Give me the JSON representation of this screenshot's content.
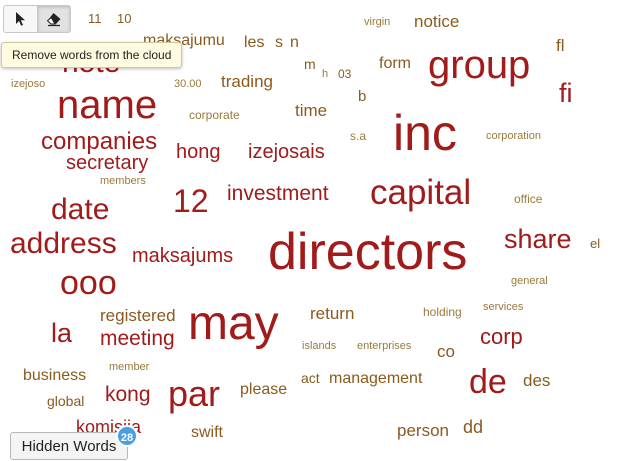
{
  "toolbar": {
    "select_tool_icon": "pointer-icon",
    "erase_tool_icon": "eraser-icon",
    "tooltip": "Remove words from the cloud"
  },
  "hidden_words": {
    "label": "Hidden Words",
    "count": "28"
  },
  "colors": {
    "red": "#a11b1b",
    "brown": "#8a5a1e",
    "olive": "#9a7a3c",
    "badge": "#4a9fe0"
  },
  "words": [
    {
      "text": "11",
      "tone": "brown"
    },
    {
      "text": "10",
      "tone": "brown"
    },
    {
      "text": "virgin",
      "tone": "olive"
    },
    {
      "text": "notice",
      "tone": "brown"
    },
    {
      "text": "maksajumu",
      "tone": "brown"
    },
    {
      "text": "les",
      "tone": "brown"
    },
    {
      "text": "s",
      "tone": "brown"
    },
    {
      "text": "n",
      "tone": "brown"
    },
    {
      "text": "fl",
      "tone": "brown"
    },
    {
      "text": "note",
      "tone": "red"
    },
    {
      "text": "group",
      "tone": "red"
    },
    {
      "text": "m",
      "tone": "brown"
    },
    {
      "text": "form",
      "tone": "brown"
    },
    {
      "text": "h",
      "tone": "olive"
    },
    {
      "text": "03",
      "tone": "brown"
    },
    {
      "text": "izejoso",
      "tone": "olive"
    },
    {
      "text": "30.00",
      "tone": "olive"
    },
    {
      "text": "trading",
      "tone": "brown"
    },
    {
      "text": "fi",
      "tone": "red"
    },
    {
      "text": "name",
      "tone": "red"
    },
    {
      "text": "b",
      "tone": "brown"
    },
    {
      "text": "time",
      "tone": "brown"
    },
    {
      "text": "corporate",
      "tone": "olive"
    },
    {
      "text": "inc",
      "tone": "red"
    },
    {
      "text": "companies",
      "tone": "red"
    },
    {
      "text": "s.a",
      "tone": "olive"
    },
    {
      "text": "corporation",
      "tone": "olive"
    },
    {
      "text": "hong",
      "tone": "red"
    },
    {
      "text": "izejosais",
      "tone": "red"
    },
    {
      "text": "secretary",
      "tone": "red"
    },
    {
      "text": "members",
      "tone": "olive"
    },
    {
      "text": "12",
      "tone": "red"
    },
    {
      "text": "investment",
      "tone": "red"
    },
    {
      "text": "capital",
      "tone": "red"
    },
    {
      "text": "office",
      "tone": "olive"
    },
    {
      "text": "date",
      "tone": "red"
    },
    {
      "text": "share",
      "tone": "red"
    },
    {
      "text": "address",
      "tone": "red"
    },
    {
      "text": "directors",
      "tone": "red"
    },
    {
      "text": "el",
      "tone": "brown"
    },
    {
      "text": "maksajums",
      "tone": "red"
    },
    {
      "text": "ooo",
      "tone": "red"
    },
    {
      "text": "general",
      "tone": "olive"
    },
    {
      "text": "services",
      "tone": "olive"
    },
    {
      "text": "registered",
      "tone": "brown"
    },
    {
      "text": "return",
      "tone": "brown"
    },
    {
      "text": "holding",
      "tone": "olive"
    },
    {
      "text": "may",
      "tone": "red"
    },
    {
      "text": "la",
      "tone": "red"
    },
    {
      "text": "meeting",
      "tone": "red"
    },
    {
      "text": "corp",
      "tone": "red"
    },
    {
      "text": "islands",
      "tone": "olive"
    },
    {
      "text": "enterprises",
      "tone": "olive"
    },
    {
      "text": "co",
      "tone": "brown"
    },
    {
      "text": "member",
      "tone": "olive"
    },
    {
      "text": "business",
      "tone": "brown"
    },
    {
      "text": "act",
      "tone": "brown"
    },
    {
      "text": "management",
      "tone": "brown"
    },
    {
      "text": "de",
      "tone": "red"
    },
    {
      "text": "des",
      "tone": "brown"
    },
    {
      "text": "kong",
      "tone": "red"
    },
    {
      "text": "par",
      "tone": "red"
    },
    {
      "text": "please",
      "tone": "brown"
    },
    {
      "text": "global",
      "tone": "brown"
    },
    {
      "text": "komisija",
      "tone": "red"
    },
    {
      "text": "swift",
      "tone": "brown"
    },
    {
      "text": "person",
      "tone": "brown"
    },
    {
      "text": "dd",
      "tone": "brown"
    }
  ]
}
